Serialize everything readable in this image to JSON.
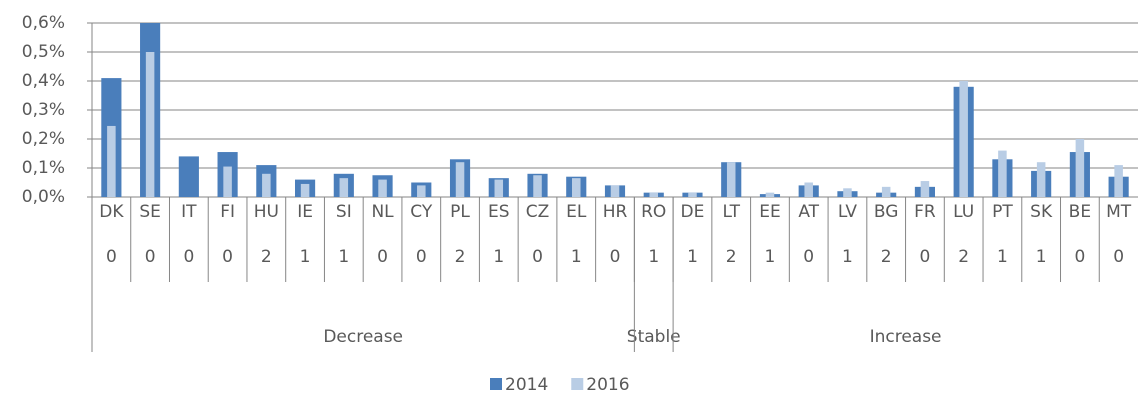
{
  "chart_data": {
    "type": "bar",
    "categories": [
      "DK",
      "SE",
      "IT",
      "FI",
      "HU",
      "IE",
      "SI",
      "NL",
      "CY",
      "PL",
      "ES",
      "CZ",
      "EL",
      "HR",
      "RO",
      "DE",
      "LT",
      "EE",
      "AT",
      "LV",
      "BG",
      "FR",
      "LU",
      "PT",
      "SK",
      "BE",
      "MT"
    ],
    "sublabels": [
      0,
      0,
      0,
      0,
      2,
      1,
      1,
      0,
      0,
      2,
      1,
      0,
      1,
      0,
      1,
      1,
      2,
      1,
      0,
      1,
      2,
      0,
      2,
      1,
      1,
      0,
      0
    ],
    "groups": [
      {
        "label": "Decrease",
        "count": 14
      },
      {
        "label": "Stable",
        "count": 1
      },
      {
        "label": "Increase",
        "count": 12
      }
    ],
    "series": [
      {
        "name": "2014",
        "color": "#4a7ebb",
        "values": [
          0.41,
          0.6,
          0.14,
          0.155,
          0.11,
          0.06,
          0.08,
          0.075,
          0.05,
          0.13,
          0.065,
          0.08,
          0.07,
          0.04,
          0.015,
          0.015,
          0.12,
          0.01,
          0.04,
          0.02,
          0.015,
          0.035,
          0.38,
          0.13,
          0.09,
          0.155,
          0.07
        ]
      },
      {
        "name": "2016",
        "color": "#b9cde5",
        "values": [
          0.245,
          0.5,
          0,
          0.105,
          0.08,
          0.045,
          0.065,
          0.06,
          0.04,
          0.12,
          0.06,
          0.075,
          0.065,
          0.04,
          0.015,
          0.015,
          0.12,
          0.015,
          0.05,
          0.03,
          0.035,
          0.055,
          0.4,
          0.16,
          0.12,
          0.2,
          0.11
        ]
      }
    ],
    "ylim": [
      0,
      0.6
    ],
    "yticks": [
      {
        "value": 0,
        "label": "0,0%"
      },
      {
        "value": 0.1,
        "label": "0,1%"
      },
      {
        "value": 0.2,
        "label": "0,2%"
      },
      {
        "value": 0.3,
        "label": "0,3%"
      },
      {
        "value": 0.4,
        "label": "0,4%"
      },
      {
        "value": 0.5,
        "label": "0,5%"
      },
      {
        "value": 0.6,
        "label": "0,6%"
      }
    ],
    "grid": true,
    "legend": "bottom"
  }
}
